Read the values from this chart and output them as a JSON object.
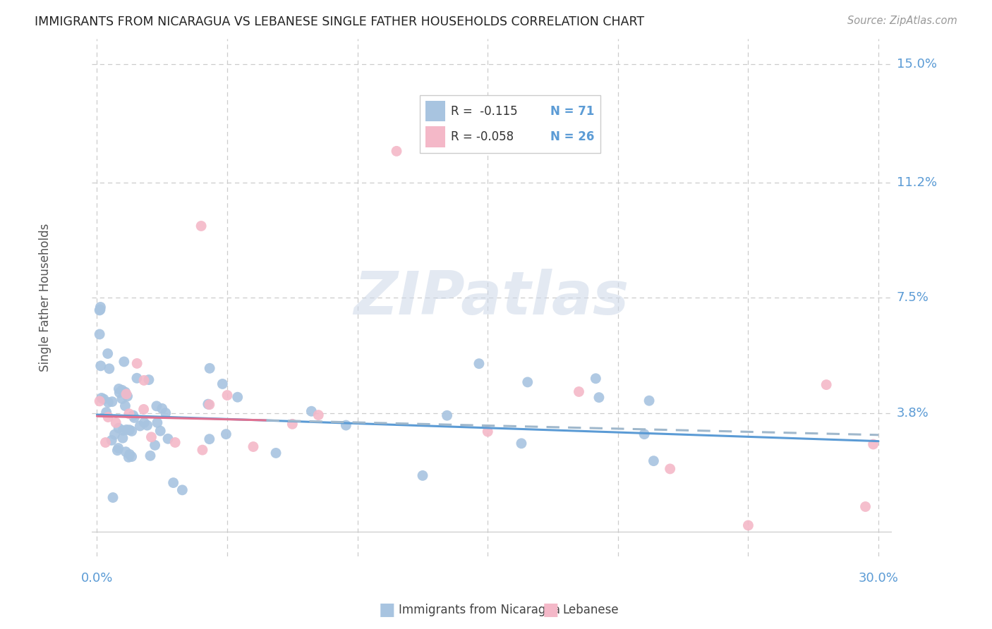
{
  "title": "IMMIGRANTS FROM NICARAGUA VS LEBANESE SINGLE FATHER HOUSEHOLDS CORRELATION CHART",
  "source": "Source: ZipAtlas.com",
  "ylabel": "Single Father Households",
  "color_blue": "#a8c4e0",
  "color_pink": "#f4b8c8",
  "color_blue_line": "#5b9bd5",
  "color_pink_line": "#e07090",
  "color_pink_dash": "#a0b8cc",
  "color_axis": "#5b9bd5",
  "color_grid": "#cccccc",
  "watermark_color": "#cdd8e8",
  "ytick_vals": [
    0.0,
    0.038,
    0.075,
    0.112,
    0.15
  ],
  "ytick_labels": [
    "",
    "3.8%",
    "7.5%",
    "11.2%",
    "15.0%"
  ],
  "xlim": [
    -0.002,
    0.305
  ],
  "ylim": [
    -0.008,
    0.158
  ],
  "trend1_x0": 0.0,
  "trend1_x1": 0.3,
  "trend1_y0": 0.0375,
  "trend1_y1": 0.029,
  "trend2_x0": 0.0,
  "trend2_x1": 0.3,
  "trend2_y0": 0.037,
  "trend2_y1": 0.031,
  "trend2_solid_end": 0.065,
  "legend_label1": "Immigrants from Nicaragua",
  "legend_label2": "Lebanese",
  "legend_r1": "R =  -0.115",
  "legend_n1": "N = 71",
  "legend_r2": "R = -0.058",
  "legend_n2": "N = 26"
}
